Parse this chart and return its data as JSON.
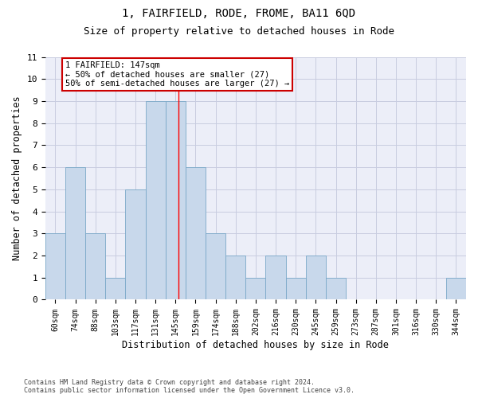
{
  "title": "1, FAIRFIELD, RODE, FROME, BA11 6QD",
  "subtitle": "Size of property relative to detached houses in Rode",
  "xlabel": "Distribution of detached houses by size in Rode",
  "ylabel": "Number of detached properties",
  "footer_line1": "Contains HM Land Registry data © Crown copyright and database right 2024.",
  "footer_line2": "Contains public sector information licensed under the Open Government Licence v3.0.",
  "bin_labels": [
    "60sqm",
    "74sqm",
    "88sqm",
    "103sqm",
    "117sqm",
    "131sqm",
    "145sqm",
    "159sqm",
    "174sqm",
    "188sqm",
    "202sqm",
    "216sqm",
    "230sqm",
    "245sqm",
    "259sqm",
    "273sqm",
    "287sqm",
    "301sqm",
    "316sqm",
    "330sqm",
    "344sqm"
  ],
  "values": [
    3,
    6,
    3,
    1,
    5,
    9,
    9,
    6,
    3,
    2,
    1,
    2,
    1,
    2,
    1,
    0,
    0,
    0,
    0,
    0,
    1
  ],
  "bar_color": "#c8d8eb",
  "bar_edgecolor": "#7aa8c8",
  "grid_color": "#c8cce0",
  "background_color": "#eceef8",
  "annotation_text": "1 FAIRFIELD: 147sqm\n← 50% of detached houses are smaller (27)\n50% of semi-detached houses are larger (27) →",
  "annotation_box_color": "#ffffff",
  "annotation_box_edgecolor": "#cc0000",
  "ylim": [
    0,
    11
  ],
  "yticks": [
    0,
    1,
    2,
    3,
    4,
    5,
    6,
    7,
    8,
    9,
    10,
    11
  ],
  "title_fontsize": 10,
  "subtitle_fontsize": 9,
  "xlabel_fontsize": 8.5,
  "ylabel_fontsize": 8.5,
  "tick_fontsize": 7,
  "annotation_fontsize": 7.5,
  "footer_fontsize": 6
}
